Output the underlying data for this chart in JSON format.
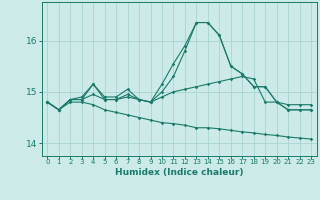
{
  "xlabel": "Humidex (Indice chaleur)",
  "xlim": [
    -0.5,
    23.5
  ],
  "ylim": [
    13.75,
    16.75
  ],
  "yticks": [
    14,
    15,
    16
  ],
  "xticks": [
    0,
    1,
    2,
    3,
    4,
    5,
    6,
    7,
    8,
    9,
    10,
    11,
    12,
    13,
    14,
    15,
    16,
    17,
    18,
    19,
    20,
    21,
    22,
    23
  ],
  "bg_color": "#cceae8",
  "grid_color": "#aad4d0",
  "line_color": "#1a7a6a",
  "lines": [
    [
      14.8,
      14.65,
      14.85,
      14.9,
      15.15,
      14.9,
      14.9,
      15.05,
      14.85,
      14.8,
      15.15,
      15.55,
      15.9,
      16.35,
      16.35,
      16.1,
      15.5,
      15.35,
      15.1,
      15.1,
      14.8,
      14.75,
      14.75,
      14.75
    ],
    [
      14.8,
      14.65,
      14.85,
      14.85,
      15.15,
      14.85,
      14.85,
      14.95,
      14.85,
      14.8,
      15.0,
      15.3,
      15.8,
      16.35,
      16.35,
      16.1,
      15.5,
      15.35,
      15.1,
      15.1,
      14.8,
      14.65,
      14.65,
      14.65
    ],
    [
      14.8,
      14.65,
      14.85,
      14.85,
      14.95,
      14.85,
      14.85,
      14.9,
      14.85,
      14.8,
      14.9,
      15.0,
      15.05,
      15.1,
      15.15,
      15.2,
      15.25,
      15.3,
      15.25,
      14.8,
      14.8,
      14.65,
      14.65,
      14.65
    ],
    [
      14.8,
      14.65,
      14.8,
      14.8,
      14.75,
      14.65,
      14.6,
      14.55,
      14.5,
      14.45,
      14.4,
      14.38,
      14.35,
      14.3,
      14.3,
      14.28,
      14.25,
      14.22,
      14.2,
      14.17,
      14.15,
      14.12,
      14.1,
      14.08
    ]
  ]
}
